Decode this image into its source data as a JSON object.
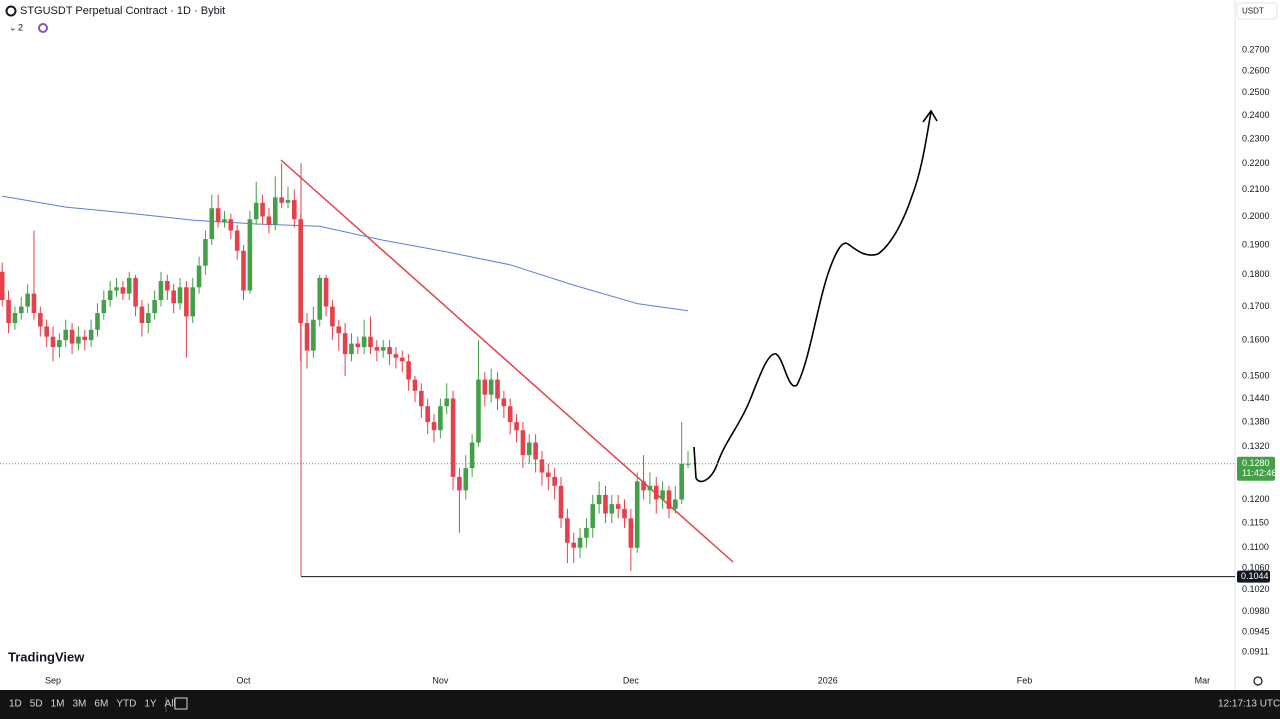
{
  "chart_data": {
    "type": "candlestick",
    "title": "STGUSDT Perpetual Contract · 1D · Bybit",
    "interval_count": "2",
    "currency": "USDT",
    "brand": "TradingView",
    "up_color": "#43a047",
    "down_color": "#e5404b",
    "log_scale": true,
    "grid": false,
    "xlim": [
      -0.35,
      194.14
    ],
    "ylim": [
      0.0879,
      0.2956
    ],
    "xticks": [
      {
        "value": 8,
        "label": "Sep"
      },
      {
        "value": 38,
        "label": "Oct"
      },
      {
        "value": 69,
        "label": "Nov"
      },
      {
        "value": 99,
        "label": "Dec"
      },
      {
        "value": 130,
        "label": "2026"
      },
      {
        "value": 161,
        "label": "Feb"
      },
      {
        "value": 189,
        "label": "Mar"
      }
    ],
    "yticks": [
      {
        "value": 0.27,
        "label": "0.2700"
      },
      {
        "value": 0.26,
        "label": "0.2600"
      },
      {
        "value": 0.25,
        "label": "0.2500"
      },
      {
        "value": 0.24,
        "label": "0.2400"
      },
      {
        "value": 0.23,
        "label": "0.2300"
      },
      {
        "value": 0.22,
        "label": "0.2200"
      },
      {
        "value": 0.21,
        "label": "0.2100"
      },
      {
        "value": 0.2,
        "label": "0.2000"
      },
      {
        "value": 0.19,
        "label": "0.1900"
      },
      {
        "value": 0.18,
        "label": "0.1800"
      },
      {
        "value": 0.17,
        "label": "0.1700"
      },
      {
        "value": 0.16,
        "label": "0.1600"
      },
      {
        "value": 0.15,
        "label": "0.1500"
      },
      {
        "value": 0.144,
        "label": "0.1440"
      },
      {
        "value": 0.138,
        "label": "0.1380"
      },
      {
        "value": 0.132,
        "label": "0.1320"
      },
      {
        "value": 0.12,
        "label": "0.1200"
      },
      {
        "value": 0.115,
        "label": "0.1150"
      },
      {
        "value": 0.11,
        "label": "0.1100"
      },
      {
        "value": 0.106,
        "label": "0.1060"
      },
      {
        "value": 0.102,
        "label": "0.1020"
      },
      {
        "value": 0.098,
        "label": "0.0980"
      },
      {
        "value": 0.0945,
        "label": "0.0945"
      },
      {
        "value": 0.0911,
        "label": "0.0911"
      }
    ],
    "open": [
      0.181,
      0.172,
      0.165,
      0.168,
      0.17,
      0.174,
      0.168,
      0.164,
      0.161,
      0.158,
      0.16,
      0.163,
      0.159,
      0.161,
      0.16,
      0.163,
      0.168,
      0.172,
      0.175,
      0.176,
      0.174,
      0.179,
      0.17,
      0.165,
      0.168,
      0.172,
      0.178,
      0.175,
      0.171,
      0.176,
      0.167,
      0.176,
      0.183,
      0.192,
      0.203,
      0.198,
      0.199,
      0.195,
      0.188,
      0.175,
      0.199,
      0.205,
      0.2,
      0.197,
      0.207,
      0.205,
      0.206,
      0.199,
      0.165,
      0.157,
      0.166,
      0.179,
      0.17,
      0.164,
      0.162,
      0.156,
      0.159,
      0.158,
      0.161,
      0.158,
      0.157,
      0.158,
      0.156,
      0.155,
      0.154,
      0.149,
      0.146,
      0.142,
      0.138,
      0.136,
      0.142,
      0.144,
      0.125,
      0.122,
      0.127,
      0.133,
      0.149,
      0.145,
      0.149,
      0.144,
      0.142,
      0.138,
      0.136,
      0.13,
      0.133,
      0.129,
      0.126,
      0.125,
      0.123,
      0.116,
      0.111,
      0.11,
      0.112,
      0.114,
      0.119,
      0.121,
      0.117,
      0.119,
      0.118,
      0.116,
      0.11,
      0.124,
      0.122,
      0.123,
      0.12,
      0.122,
      0.118,
      0.12,
      0.1278
    ],
    "high": [
      0.184,
      0.175,
      0.17,
      0.173,
      0.177,
      0.195,
      0.17,
      0.166,
      0.164,
      0.162,
      0.166,
      0.165,
      0.164,
      0.163,
      0.166,
      0.171,
      0.175,
      0.178,
      0.179,
      0.178,
      0.181,
      0.18,
      0.172,
      0.171,
      0.175,
      0.181,
      0.18,
      0.177,
      0.179,
      0.178,
      0.179,
      0.186,
      0.195,
      0.208,
      0.208,
      0.202,
      0.201,
      0.197,
      0.19,
      0.202,
      0.213,
      0.208,
      0.203,
      0.215,
      0.22,
      0.211,
      0.21,
      0.201,
      0.168,
      0.17,
      0.18,
      0.18,
      0.172,
      0.166,
      0.165,
      0.162,
      0.161,
      0.166,
      0.167,
      0.16,
      0.16,
      0.16,
      0.158,
      0.157,
      0.156,
      0.15,
      0.148,
      0.144,
      0.14,
      0.144,
      0.148,
      0.146,
      0.127,
      0.13,
      0.135,
      0.16,
      0.151,
      0.152,
      0.151,
      0.146,
      0.144,
      0.14,
      0.138,
      0.135,
      0.135,
      0.131,
      0.128,
      0.127,
      0.125,
      0.118,
      0.113,
      0.114,
      0.116,
      0.121,
      0.124,
      0.123,
      0.121,
      0.121,
      0.12,
      0.118,
      0.126,
      0.13,
      0.126,
      0.125,
      0.124,
      0.123,
      0.123,
      0.138,
      0.131
    ],
    "low": [
      0.17,
      0.162,
      0.163,
      0.166,
      0.168,
      0.166,
      0.161,
      0.158,
      0.154,
      0.155,
      0.158,
      0.156,
      0.157,
      0.157,
      0.158,
      0.161,
      0.166,
      0.17,
      0.173,
      0.172,
      0.172,
      0.167,
      0.161,
      0.162,
      0.166,
      0.17,
      0.172,
      0.168,
      0.169,
      0.155,
      0.165,
      0.174,
      0.18,
      0.19,
      0.196,
      0.196,
      0.192,
      0.185,
      0.172,
      0.174,
      0.197,
      0.197,
      0.194,
      0.195,
      0.203,
      0.203,
      0.196,
      0.154,
      0.152,
      0.155,
      0.164,
      0.167,
      0.16,
      0.157,
      0.15,
      0.154,
      0.156,
      0.156,
      0.156,
      0.154,
      0.155,
      0.153,
      0.152,
      0.151,
      0.146,
      0.143,
      0.139,
      0.135,
      0.133,
      0.134,
      0.14,
      0.122,
      0.113,
      0.12,
      0.125,
      0.132,
      0.142,
      0.143,
      0.141,
      0.139,
      0.135,
      0.133,
      0.127,
      0.128,
      0.126,
      0.123,
      0.122,
      0.12,
      0.114,
      0.107,
      0.107,
      0.108,
      0.11,
      0.112,
      0.117,
      0.115,
      0.115,
      0.116,
      0.114,
      0.1055,
      0.109,
      0.12,
      0.119,
      0.117,
      0.118,
      0.116,
      0.117,
      0.119,
      0.127
    ],
    "close": [
      0.172,
      0.165,
      0.168,
      0.17,
      0.174,
      0.168,
      0.164,
      0.161,
      0.158,
      0.16,
      0.163,
      0.159,
      0.161,
      0.16,
      0.163,
      0.168,
      0.172,
      0.175,
      0.176,
      0.174,
      0.179,
      0.17,
      0.165,
      0.168,
      0.172,
      0.178,
      0.175,
      0.171,
      0.176,
      0.167,
      0.176,
      0.183,
      0.192,
      0.203,
      0.198,
      0.199,
      0.195,
      0.188,
      0.175,
      0.199,
      0.205,
      0.2,
      0.197,
      0.207,
      0.205,
      0.206,
      0.199,
      0.165,
      0.157,
      0.166,
      0.179,
      0.17,
      0.164,
      0.162,
      0.156,
      0.159,
      0.158,
      0.161,
      0.158,
      0.157,
      0.158,
      0.156,
      0.155,
      0.154,
      0.149,
      0.146,
      0.142,
      0.138,
      0.136,
      0.142,
      0.144,
      0.125,
      0.122,
      0.127,
      0.133,
      0.149,
      0.145,
      0.149,
      0.144,
      0.142,
      0.138,
      0.136,
      0.13,
      0.133,
      0.129,
      0.126,
      0.125,
      0.123,
      0.116,
      0.111,
      0.11,
      0.112,
      0.114,
      0.119,
      0.121,
      0.117,
      0.119,
      0.118,
      0.116,
      0.11,
      0.124,
      0.122,
      0.123,
      0.12,
      0.122,
      0.118,
      0.12,
      0.128,
      0.128
    ],
    "ma": {
      "color": "#5b7fd6",
      "x": [
        0,
        10,
        20,
        30,
        40,
        50,
        60,
        70,
        80,
        90,
        100,
        108
      ],
      "values": [
        0.2075,
        0.2034,
        0.2012,
        0.1987,
        0.1973,
        0.1965,
        0.1916,
        0.1876,
        0.1833,
        0.1767,
        0.1709,
        0.1687
      ]
    },
    "last_price": {
      "value": 0.128,
      "label": "0.1280"
    },
    "countdown": "11:42:46",
    "hline": {
      "value": 0.1044,
      "label": "0.1044"
    }
  },
  "toolbar": {
    "ranges": [
      "1D",
      "5D",
      "1M",
      "3M",
      "6M",
      "YTD",
      "1Y",
      "All"
    ],
    "clock": "12:17:13 UTC"
  }
}
